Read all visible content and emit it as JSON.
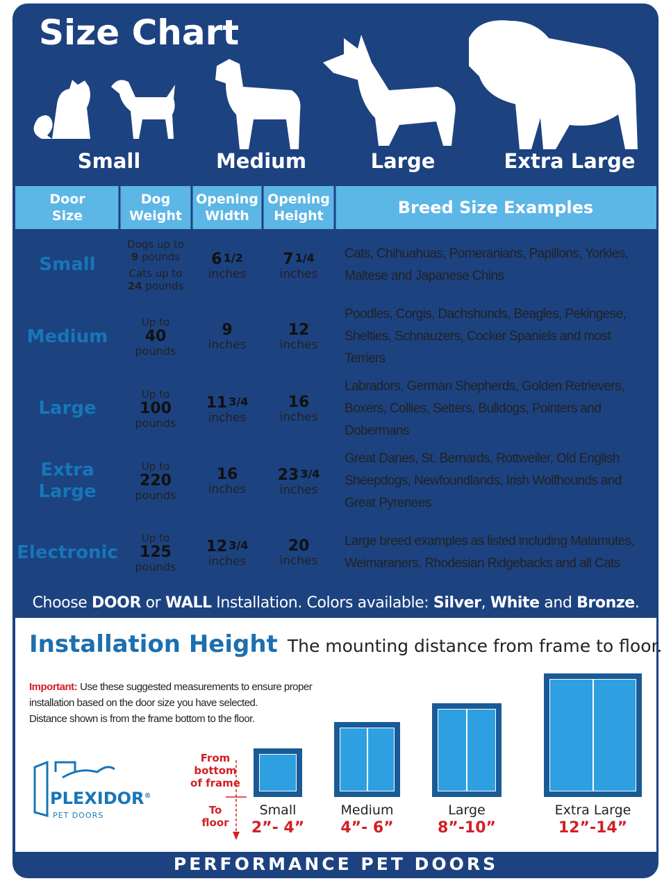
{
  "header": {
    "title": "Size Chart",
    "sizes": [
      "Small",
      "Medium",
      "Large",
      "Extra Large"
    ]
  },
  "table": {
    "columns": [
      "Door Size",
      "Dog Weight",
      "Opening Width",
      "Opening Height",
      "Breed Size Examples"
    ],
    "rows": [
      {
        "door": "Small",
        "weight": [
          {
            "label": "Dogs up to",
            "number": "9",
            "unit": "pounds"
          },
          {
            "label": "Cats up to",
            "number": "24",
            "unit": "pounds"
          }
        ],
        "width": {
          "whole": "6",
          "fraction": "1/2",
          "unit": "inches"
        },
        "height": {
          "whole": "7",
          "fraction": "1/4",
          "unit": "inches"
        },
        "breeds": "Cats, Chihuahuas, Pomeranians, Papillons, Yorkies, Maltese and Japanese Chins"
      },
      {
        "door": "Medium",
        "weight": [
          {
            "label": "Up to",
            "number": "40",
            "unit": "pounds"
          }
        ],
        "width": {
          "whole": "9",
          "unit": "inches"
        },
        "height": {
          "whole": "12",
          "unit": "inches"
        },
        "breeds": "Poodles, Corgis, Dachshunds, Beagles, Pekingese, Shelties, Schnauzers, Cocker Spaniels and most Terriers"
      },
      {
        "door": "Large",
        "weight": [
          {
            "label": "Up to",
            "number": "100",
            "unit": "pounds"
          }
        ],
        "width": {
          "whole": "11",
          "fraction": "3/4",
          "unit": "inches"
        },
        "height": {
          "whole": "16",
          "unit": "inches"
        },
        "breeds": "Labradors, German Shepherds, Golden Retrievers, Boxers, Collies, Setters, Bulldogs, Pointers and Dobermans"
      },
      {
        "door": "Extra Large",
        "weight": [
          {
            "label": "Up to",
            "number": "220",
            "unit": "pounds"
          }
        ],
        "width": {
          "whole": "16",
          "unit": "inches"
        },
        "height": {
          "whole": "23",
          "fraction": "3/4",
          "unit": "inches"
        },
        "breeds": "Great Danes, St. Bernards, Rottweiler, Old English Sheepdogs, Newfoundlands, Irish Wolfhounds and Great Pyrenees"
      },
      {
        "door": "Electronic",
        "weight": [
          {
            "label": "Up to",
            "number": "125",
            "unit": "pounds"
          }
        ],
        "width": {
          "whole": "12",
          "fraction": "3/4",
          "unit": "inches"
        },
        "height": {
          "whole": "20",
          "unit": "inches"
        },
        "breeds": "Large breed examples as listed including Malamutes, Weimaraners, Rhodesian Ridgebacks and all Cats"
      }
    ]
  },
  "options": [
    {
      "text": "Choose ",
      "bold": false
    },
    {
      "text": "DOOR",
      "bold": true
    },
    {
      "text": " or ",
      "bold": false
    },
    {
      "text": "WALL",
      "bold": true
    },
    {
      "text": " Installation. Colors available: ",
      "bold": false
    },
    {
      "text": "Silver",
      "bold": true
    },
    {
      "text": ", ",
      "bold": false
    },
    {
      "text": "White",
      "bold": true
    },
    {
      "text": " and ",
      "bold": false
    },
    {
      "text": "Bronze",
      "bold": true
    },
    {
      "text": ".",
      "bold": false
    }
  ],
  "installation": {
    "title": "Installation Height",
    "subtitle": "The mounting distance from frame to floor.",
    "important": "Important:",
    "note": [
      "Use these suggested measurements to ensure proper",
      "installation based on the door size you have selected.",
      "Distance shown is from the frame bottom to the floor."
    ],
    "from": [
      "From",
      "bottom",
      "of frame"
    ],
    "to": [
      "To",
      "floor"
    ],
    "doors": [
      {
        "name": "Small",
        "range": "2”- 4”"
      },
      {
        "name": "Medium",
        "range": "4”- 6”"
      },
      {
        "name": "Large",
        "range": "8”-10”"
      },
      {
        "name": "Extra Large",
        "range": "12”-14”"
      }
    ]
  },
  "logo": {
    "brand": "PLEXIDOR",
    "mark": "®",
    "tagline": "PET DOORS"
  },
  "footer": "PERFORMANCE PET DOORS"
}
